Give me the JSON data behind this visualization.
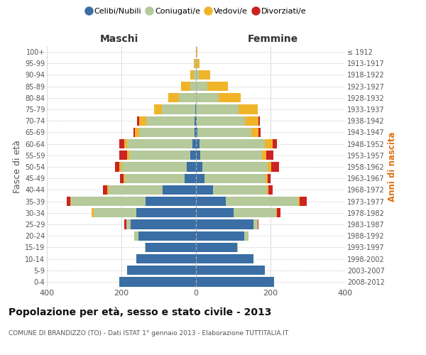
{
  "age_groups": [
    "0-4",
    "5-9",
    "10-14",
    "15-19",
    "20-24",
    "25-29",
    "30-34",
    "35-39",
    "40-44",
    "45-49",
    "50-54",
    "55-59",
    "60-64",
    "65-69",
    "70-74",
    "75-79",
    "80-84",
    "85-89",
    "90-94",
    "95-99",
    "100+"
  ],
  "birth_years": [
    "2008-2012",
    "2003-2007",
    "1998-2002",
    "1993-1997",
    "1988-1992",
    "1983-1987",
    "1978-1982",
    "1973-1977",
    "1968-1972",
    "1963-1967",
    "1958-1962",
    "1953-1957",
    "1948-1952",
    "1943-1947",
    "1938-1942",
    "1933-1937",
    "1928-1932",
    "1923-1927",
    "1918-1922",
    "1913-1917",
    "≤ 1912"
  ],
  "colors": {
    "celibe": "#3a6ea5",
    "coniugato": "#b5c99a",
    "vedovo": "#f0b429",
    "divorziato": "#cc2222"
  },
  "males": {
    "celibe": [
      205,
      185,
      160,
      135,
      155,
      175,
      160,
      135,
      90,
      30,
      25,
      15,
      10,
      3,
      3,
      2,
      0,
      0,
      0,
      0,
      0
    ],
    "coniugato": [
      0,
      0,
      0,
      3,
      10,
      12,
      115,
      200,
      145,
      160,
      175,
      165,
      175,
      150,
      130,
      90,
      45,
      15,
      5,
      2,
      0
    ],
    "vedovo": [
      0,
      0,
      0,
      0,
      0,
      0,
      5,
      2,
      3,
      5,
      5,
      5,
      8,
      10,
      20,
      20,
      30,
      25,
      10,
      3,
      0
    ],
    "divorziato": [
      0,
      0,
      0,
      0,
      0,
      5,
      0,
      10,
      12,
      8,
      12,
      20,
      12,
      5,
      5,
      0,
      0,
      0,
      0,
      0,
      0
    ]
  },
  "females": {
    "nubile": [
      210,
      185,
      155,
      110,
      130,
      155,
      100,
      80,
      45,
      22,
      18,
      12,
      10,
      3,
      2,
      0,
      0,
      0,
      0,
      0,
      0
    ],
    "coniugata": [
      0,
      0,
      0,
      3,
      10,
      10,
      115,
      195,
      145,
      165,
      175,
      165,
      175,
      145,
      130,
      115,
      60,
      30,
      8,
      2,
      0
    ],
    "vedova": [
      0,
      0,
      0,
      0,
      0,
      0,
      3,
      3,
      5,
      5,
      8,
      12,
      20,
      20,
      35,
      50,
      60,
      55,
      30,
      8,
      3
    ],
    "divorziata": [
      0,
      0,
      0,
      0,
      0,
      3,
      8,
      20,
      10,
      8,
      22,
      18,
      12,
      5,
      5,
      0,
      0,
      0,
      0,
      0,
      0
    ]
  },
  "title": "Popolazione per età, sesso e stato civile - 2013",
  "subtitle": "COMUNE DI BRANDIZZO (TO) - Dati ISTAT 1° gennaio 2013 - Elaborazione TUTTITALIA.IT",
  "xlabel_left": "Maschi",
  "xlabel_right": "Femmine",
  "ylabel_left": "Fasce di età",
  "ylabel_right": "Anni di nascita",
  "xlim": 400,
  "bg_color": "#ffffff",
  "grid_color": "#cccccc",
  "legend_labels": [
    "Celibi/Nubili",
    "Coniugati/e",
    "Vedovi/e",
    "Divorziati/e"
  ]
}
